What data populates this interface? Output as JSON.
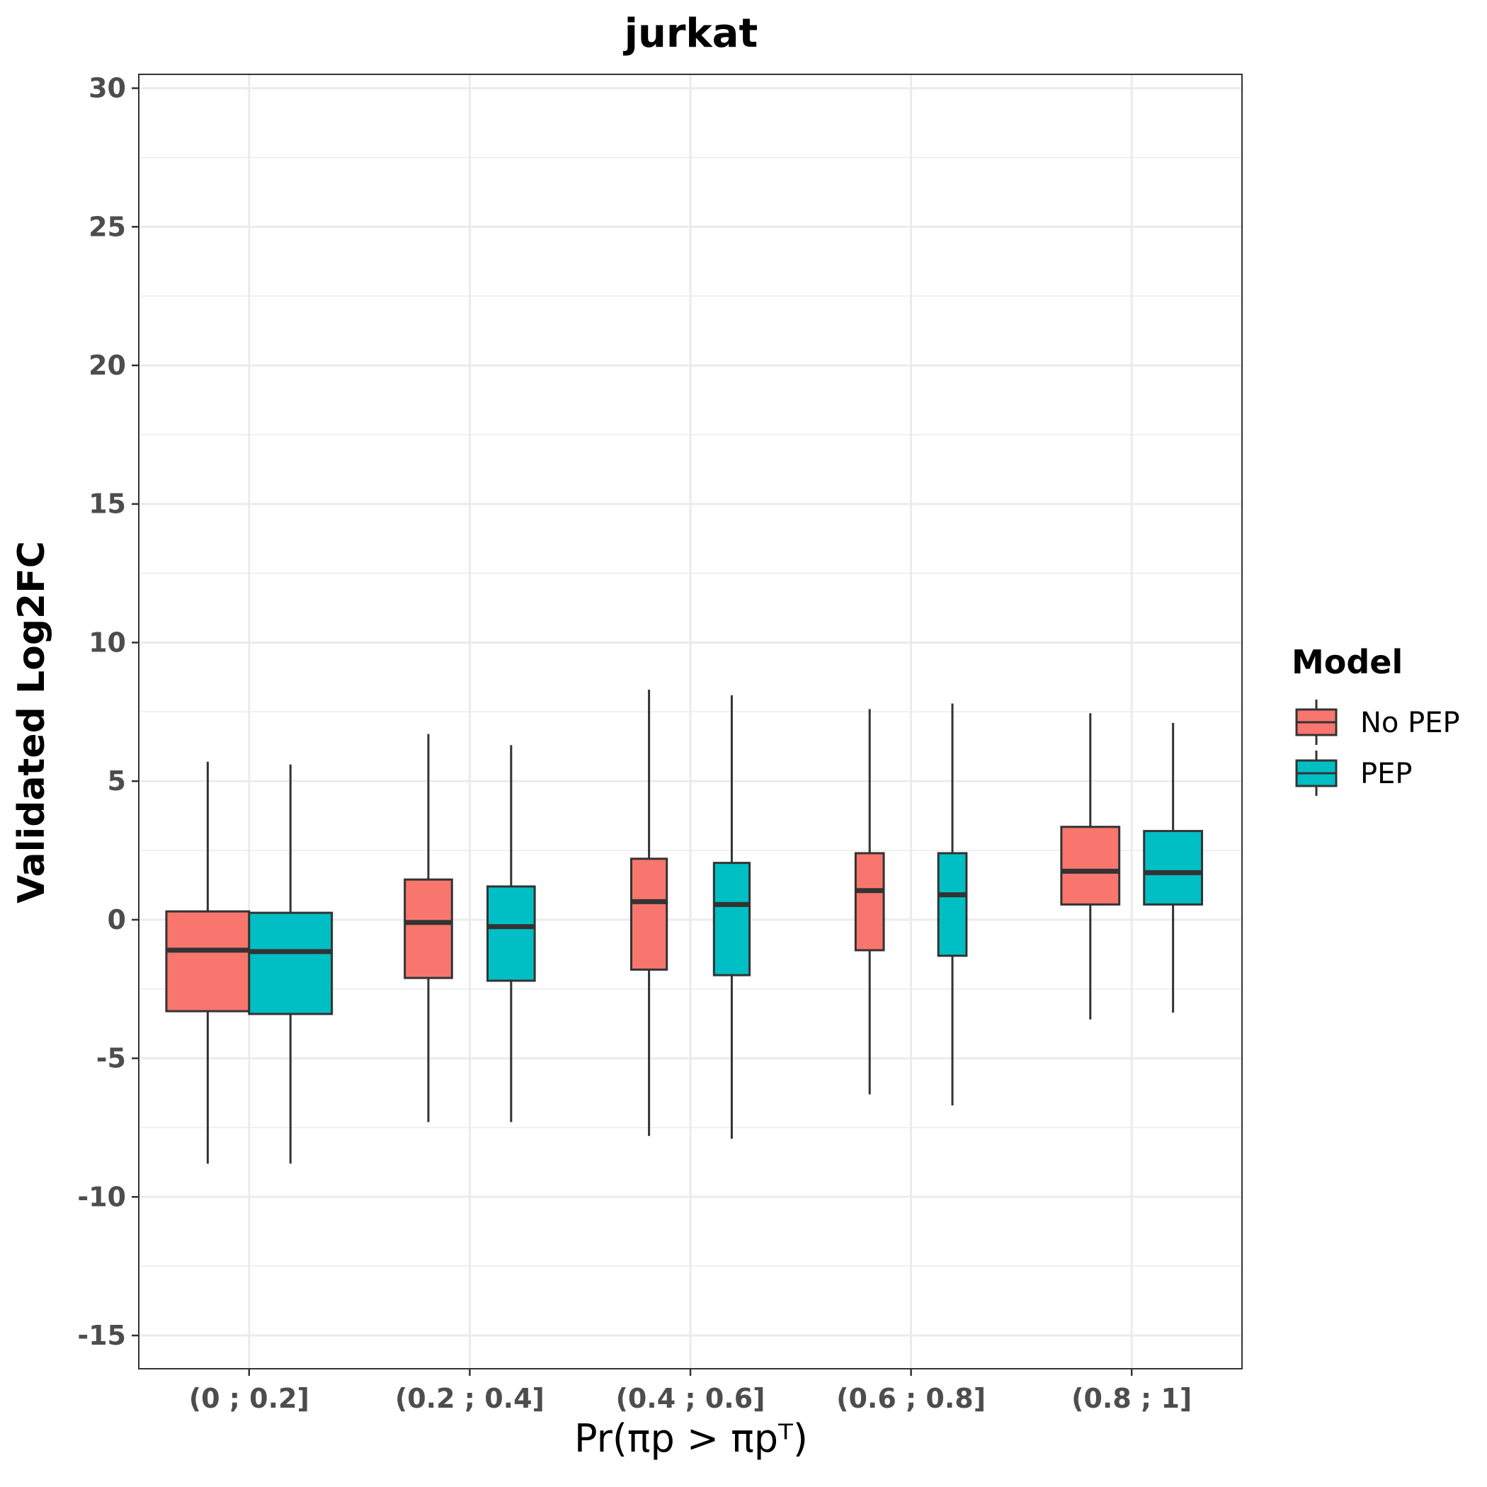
{
  "chart_data": {
    "type": "boxplot",
    "title": "jurkat",
    "xlabel": "Pr(πp > πpᵀ)",
    "ylabel": "Validated Log2FC",
    "ylim": [
      -16.2,
      30.5
    ],
    "yticks": [
      -15,
      -10,
      -5,
      0,
      5,
      10,
      15,
      20,
      25,
      30
    ],
    "grid": true,
    "legend": {
      "title": "Model",
      "placement": "right"
    },
    "categories": [
      "(0 ; 0.2]",
      "(0.2 ; 0.4]",
      "(0.4 ; 0.6]",
      "(0.6 ; 0.8]",
      "(0.8 ; 1]"
    ],
    "relative_widths": [
      1.0,
      0.57,
      0.43,
      0.34,
      0.7
    ],
    "series": [
      {
        "name": "No PEP",
        "color": "#F8766D",
        "boxes": [
          {
            "min": -8.8,
            "q1": -3.3,
            "median": -1.1,
            "q3": 0.3,
            "max": 5.7
          },
          {
            "min": -7.3,
            "q1": -2.1,
            "median": -0.1,
            "q3": 1.45,
            "max": 6.7
          },
          {
            "min": -7.8,
            "q1": -1.8,
            "median": 0.65,
            "q3": 2.2,
            "max": 8.3
          },
          {
            "min": -6.3,
            "q1": -1.1,
            "median": 1.05,
            "q3": 2.4,
            "max": 7.6
          },
          {
            "min": -3.6,
            "q1": 0.55,
            "median": 1.75,
            "q3": 3.35,
            "max": 7.45
          }
        ]
      },
      {
        "name": "PEP",
        "color": "#00BFC4",
        "boxes": [
          {
            "min": -8.8,
            "q1": -3.4,
            "median": -1.15,
            "q3": 0.25,
            "max": 5.6
          },
          {
            "min": -7.3,
            "q1": -2.2,
            "median": -0.25,
            "q3": 1.2,
            "max": 6.3
          },
          {
            "min": -7.9,
            "q1": -2.0,
            "median": 0.55,
            "q3": 2.05,
            "max": 8.1
          },
          {
            "min": -6.7,
            "q1": -1.3,
            "median": 0.9,
            "q3": 2.4,
            "max": 7.8
          },
          {
            "min": -3.35,
            "q1": 0.55,
            "median": 1.7,
            "q3": 3.2,
            "max": 7.1
          }
        ]
      }
    ]
  }
}
